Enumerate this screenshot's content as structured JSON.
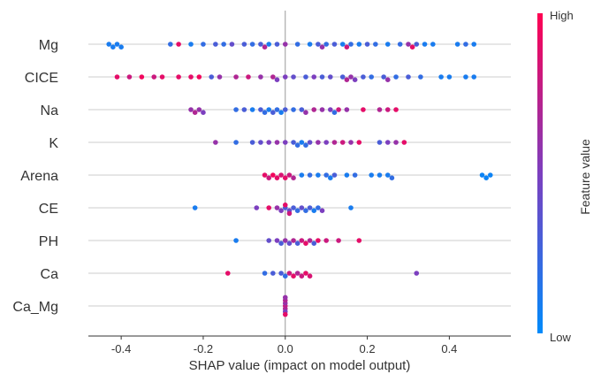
{
  "chart_data": {
    "type": "scatter",
    "subtype": "shap-beeswarm",
    "title": "",
    "xlabel": "SHAP value (impact on model output)",
    "ylabel": "",
    "xlim": [
      -0.48,
      0.55
    ],
    "xticks": [
      "-0.4",
      "-0.2",
      "0.0",
      "0.2",
      "0.4"
    ],
    "xtick_values": [
      -0.4,
      -0.2,
      0.0,
      0.2,
      0.4
    ],
    "grid": "horizontal feature lines, vertical zero line",
    "colorbar": {
      "high_label": "High",
      "low_label": "Low",
      "label": "Feature value",
      "high_color": "#ff0052",
      "low_color": "#008bfb"
    },
    "features": [
      {
        "name": "Mg",
        "points": [
          [
            -0.43,
            0.1
          ],
          [
            -0.42,
            0.1
          ],
          [
            -0.41,
            0.1
          ],
          [
            -0.4,
            0.1
          ],
          [
            -0.28,
            0.2
          ],
          [
            -0.26,
            0.9
          ],
          [
            -0.23,
            0.1
          ],
          [
            -0.2,
            0.2
          ],
          [
            -0.17,
            0.3
          ],
          [
            -0.15,
            0.2
          ],
          [
            -0.13,
            0.4
          ],
          [
            -0.1,
            0.3
          ],
          [
            -0.08,
            0.2
          ],
          [
            -0.06,
            0.3
          ],
          [
            -0.04,
            0.1
          ],
          [
            -0.02,
            0.3
          ],
          [
            0.0,
            0.6
          ],
          [
            0.03,
            0.2
          ],
          [
            0.06,
            0.1
          ],
          [
            0.08,
            0.3
          ],
          [
            0.1,
            0.2
          ],
          [
            0.12,
            0.3
          ],
          [
            0.14,
            0.1
          ],
          [
            0.16,
            0.2
          ],
          [
            0.18,
            0.1
          ],
          [
            0.2,
            0.3
          ],
          [
            0.22,
            0.2
          ],
          [
            0.25,
            0.1
          ],
          [
            0.28,
            0.2
          ],
          [
            0.3,
            0.6
          ],
          [
            0.32,
            0.3
          ],
          [
            0.34,
            0.1
          ],
          [
            0.36,
            0.1
          ],
          [
            0.42,
            0.1
          ],
          [
            0.44,
            0.2
          ],
          [
            0.46,
            0.1
          ],
          [
            0.09,
            0.6
          ],
          [
            -0.05,
            0.7
          ],
          [
            0.15,
            0.8
          ],
          [
            0.31,
            0.9
          ]
        ]
      },
      {
        "name": "CICE",
        "points": [
          [
            -0.41,
            0.9
          ],
          [
            -0.38,
            0.8
          ],
          [
            -0.35,
            0.95
          ],
          [
            -0.32,
            0.8
          ],
          [
            -0.3,
            0.9
          ],
          [
            -0.26,
            0.9
          ],
          [
            -0.23,
            0.9
          ],
          [
            -0.21,
            0.95
          ],
          [
            -0.18,
            0.3
          ],
          [
            -0.16,
            0.6
          ],
          [
            -0.12,
            0.7
          ],
          [
            -0.09,
            0.8
          ],
          [
            -0.06,
            0.6
          ],
          [
            -0.03,
            0.7
          ],
          [
            -0.02,
            0.5
          ],
          [
            0.0,
            0.5
          ],
          [
            0.02,
            0.4
          ],
          [
            0.05,
            0.3
          ],
          [
            0.07,
            0.5
          ],
          [
            0.09,
            0.3
          ],
          [
            0.11,
            0.4
          ],
          [
            0.14,
            0.3
          ],
          [
            0.16,
            0.6
          ],
          [
            0.17,
            0.5
          ],
          [
            0.19,
            0.3
          ],
          [
            0.21,
            0.2
          ],
          [
            0.24,
            0.3
          ],
          [
            0.27,
            0.2
          ],
          [
            0.3,
            0.3
          ],
          [
            0.33,
            0.2
          ],
          [
            0.38,
            0.1
          ],
          [
            0.4,
            0.1
          ],
          [
            0.44,
            0.1
          ],
          [
            0.46,
            0.1
          ],
          [
            0.25,
            0.6
          ],
          [
            0.15,
            0.7
          ]
        ]
      },
      {
        "name": "Na",
        "points": [
          [
            -0.23,
            0.6
          ],
          [
            -0.22,
            0.7
          ],
          [
            -0.21,
            0.6
          ],
          [
            -0.2,
            0.5
          ],
          [
            -0.12,
            0.2
          ],
          [
            -0.1,
            0.3
          ],
          [
            -0.08,
            0.1
          ],
          [
            -0.06,
            0.3
          ],
          [
            -0.05,
            0.2
          ],
          [
            -0.04,
            0.1
          ],
          [
            -0.03,
            0.3
          ],
          [
            -0.02,
            0.2
          ],
          [
            -0.01,
            0.1
          ],
          [
            0.0,
            0.3
          ],
          [
            0.02,
            0.2
          ],
          [
            0.04,
            0.3
          ],
          [
            0.05,
            0.6
          ],
          [
            0.07,
            0.7
          ],
          [
            0.09,
            0.6
          ],
          [
            0.11,
            0.5
          ],
          [
            0.13,
            0.8
          ],
          [
            0.15,
            0.6
          ],
          [
            0.19,
            0.9
          ],
          [
            0.23,
            0.7
          ],
          [
            0.25,
            0.8
          ],
          [
            0.27,
            0.9
          ],
          [
            0.12,
            0.2
          ]
        ]
      },
      {
        "name": "K",
        "points": [
          [
            -0.17,
            0.6
          ],
          [
            -0.12,
            0.2
          ],
          [
            -0.08,
            0.3
          ],
          [
            -0.06,
            0.4
          ],
          [
            -0.04,
            0.5
          ],
          [
            -0.02,
            0.6
          ],
          [
            0.0,
            0.5
          ],
          [
            0.02,
            0.3
          ],
          [
            0.03,
            0.2
          ],
          [
            0.04,
            0.1
          ],
          [
            0.05,
            0.2
          ],
          [
            0.06,
            0.4
          ],
          [
            0.08,
            0.6
          ],
          [
            0.1,
            0.5
          ],
          [
            0.12,
            0.7
          ],
          [
            0.14,
            0.8
          ],
          [
            0.16,
            0.6
          ],
          [
            0.18,
            0.9
          ],
          [
            0.23,
            0.3
          ],
          [
            0.25,
            0.5
          ],
          [
            0.27,
            0.6
          ],
          [
            0.29,
            0.9
          ]
        ]
      },
      {
        "name": "Arena",
        "points": [
          [
            -0.05,
            0.9
          ],
          [
            -0.04,
            0.8
          ],
          [
            -0.03,
            0.95
          ],
          [
            -0.02,
            0.9
          ],
          [
            -0.01,
            0.85
          ],
          [
            0.0,
            0.9
          ],
          [
            0.01,
            0.8
          ],
          [
            0.02,
            0.7
          ],
          [
            0.04,
            0.1
          ],
          [
            0.06,
            0.2
          ],
          [
            0.08,
            0.1
          ],
          [
            0.1,
            0.2
          ],
          [
            0.11,
            0.1
          ],
          [
            0.12,
            0.3
          ],
          [
            0.15,
            0.1
          ],
          [
            0.17,
            0.2
          ],
          [
            0.21,
            0.1
          ],
          [
            0.23,
            0.1
          ],
          [
            0.25,
            0.1
          ],
          [
            0.26,
            0.2
          ],
          [
            0.48,
            0.05
          ],
          [
            0.49,
            0.05
          ],
          [
            0.5,
            0.05
          ]
        ]
      },
      {
        "name": "CE",
        "points": [
          [
            -0.22,
            0.1
          ],
          [
            -0.07,
            0.5
          ],
          [
            -0.04,
            0.9
          ],
          [
            -0.02,
            0.6
          ],
          [
            -0.01,
            0.5
          ],
          [
            0.0,
            0.3
          ],
          [
            0.01,
            0.4
          ],
          [
            0.02,
            0.3
          ],
          [
            0.03,
            0.2
          ],
          [
            0.04,
            0.4
          ],
          [
            0.05,
            0.2
          ],
          [
            0.06,
            0.3
          ],
          [
            0.07,
            0.1
          ],
          [
            0.08,
            0.2
          ],
          [
            0.09,
            0.5
          ],
          [
            0.16,
            0.1
          ],
          [
            0.0,
            0.9
          ],
          [
            0.01,
            0.8
          ]
        ]
      },
      {
        "name": "PH",
        "points": [
          [
            -0.12,
            0.1
          ],
          [
            -0.04,
            0.4
          ],
          [
            -0.02,
            0.5
          ],
          [
            0.0,
            0.6
          ],
          [
            0.01,
            0.4
          ],
          [
            0.02,
            0.7
          ],
          [
            0.03,
            0.3
          ],
          [
            0.04,
            0.8
          ],
          [
            0.05,
            0.9
          ],
          [
            0.06,
            0.7
          ],
          [
            0.08,
            0.9
          ],
          [
            0.1,
            0.8
          ],
          [
            0.13,
            0.8
          ],
          [
            0.18,
            0.9
          ],
          [
            0.07,
            0.3
          ],
          [
            -0.01,
            0.3
          ]
        ]
      },
      {
        "name": "Ca",
        "points": [
          [
            -0.14,
            0.9
          ],
          [
            -0.05,
            0.2
          ],
          [
            -0.03,
            0.3
          ],
          [
            -0.01,
            0.3
          ],
          [
            0.0,
            0.2
          ],
          [
            0.01,
            0.8
          ],
          [
            0.02,
            0.9
          ],
          [
            0.03,
            0.7
          ],
          [
            0.04,
            0.8
          ],
          [
            0.05,
            0.9
          ],
          [
            0.06,
            0.85
          ],
          [
            0.32,
            0.5
          ]
        ]
      },
      {
        "name": "Ca_Mg",
        "points": [
          [
            0.0,
            0.8
          ],
          [
            0.0,
            0.7
          ],
          [
            0.0,
            0.6
          ],
          [
            0.0,
            0.5
          ],
          [
            0.0,
            0.7
          ],
          [
            0.0,
            0.9
          ],
          [
            0.0,
            0.6
          ]
        ]
      }
    ]
  }
}
